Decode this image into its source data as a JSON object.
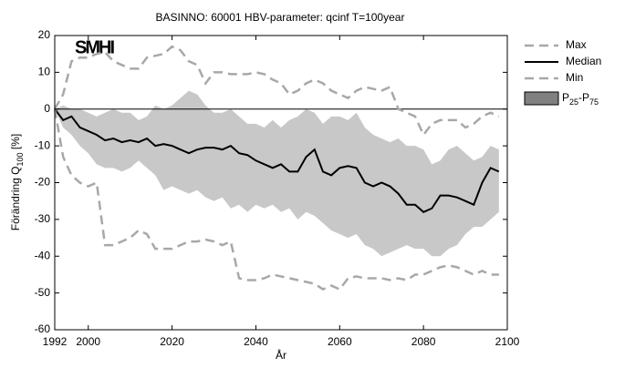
{
  "chart_data": {
    "type": "line",
    "title": "BASINNO: 60001    HBV-parameter: qcinf  T=100year",
    "logo": "SMHI",
    "x_label": "År",
    "y_label": "Förändring Q100 [%]",
    "xlim": [
      1992,
      2100
    ],
    "xticks": [
      1992,
      2000,
      2020,
      2040,
      2060,
      2080,
      2100
    ],
    "ylim": [
      -60,
      20
    ],
    "yticks": [
      -60,
      -50,
      -40,
      -30,
      -20,
      -10,
      0,
      10,
      20
    ],
    "x": [
      1992,
      1994,
      1996,
      1998,
      2000,
      2002,
      2004,
      2006,
      2008,
      2010,
      2012,
      2014,
      2016,
      2018,
      2020,
      2022,
      2024,
      2026,
      2028,
      2030,
      2032,
      2034,
      2036,
      2038,
      2040,
      2042,
      2044,
      2046,
      2048,
      2050,
      2052,
      2054,
      2056,
      2058,
      2060,
      2062,
      2064,
      2066,
      2068,
      2070,
      2072,
      2074,
      2076,
      2078,
      2080,
      2082,
      2084,
      2086,
      2088,
      2090,
      2092,
      2094,
      2096,
      2098
    ],
    "band": {
      "name": "P25-P75",
      "color": "#c8c8c8",
      "upper": [
        0,
        1,
        0,
        0,
        -1,
        -2,
        -1,
        0,
        -1,
        -1,
        -3,
        -2,
        1,
        0,
        1,
        3,
        5,
        4,
        1,
        -1,
        -1,
        0,
        -2,
        -4,
        -4,
        -5,
        -3,
        -5,
        -3,
        -2,
        0,
        -1,
        -4,
        -2,
        -2,
        -3,
        -1,
        -5,
        -7,
        -8,
        -9,
        -8,
        -10,
        -10,
        -11,
        -15,
        -14,
        -11,
        -10,
        -12,
        -14,
        -13,
        -10,
        -11
      ],
      "lower": [
        0,
        -5,
        -7,
        -10,
        -12,
        -15,
        -16,
        -16,
        -17,
        -16,
        -14,
        -16,
        -18,
        -22,
        -21,
        -22,
        -23,
        -22,
        -24,
        -25,
        -24,
        -27,
        -26,
        -28,
        -26,
        -27,
        -26,
        -28,
        -27,
        -30,
        -28,
        -29,
        -31,
        -33,
        -34,
        -35,
        -34,
        -37,
        -38,
        -40,
        -39,
        -38,
        -37,
        -38,
        -38,
        -40,
        -40,
        -38,
        -37,
        -34,
        -32,
        -32,
        -30,
        -28
      ]
    },
    "series": [
      {
        "name": "Max",
        "color": "#a8a8a8",
        "dashed": true,
        "values": [
          0,
          4,
          13,
          14,
          14,
          15,
          15.5,
          13,
          12,
          11,
          11,
          14,
          14.5,
          15,
          17,
          16,
          13,
          12,
          7,
          10,
          10,
          9.5,
          9.5,
          9.5,
          10,
          9.5,
          8,
          7,
          4,
          5,
          7,
          8,
          7,
          5,
          4,
          3,
          5,
          6,
          5.5,
          5,
          6,
          0,
          -1,
          -2,
          -7,
          -4,
          -3,
          -3,
          -3,
          -5,
          -4,
          -2,
          -1,
          -2
        ]
      },
      {
        "name": "Median",
        "color": "#000000",
        "dashed": false,
        "values": [
          0,
          -3,
          -2,
          -5,
          -6,
          -7,
          -8.5,
          -8,
          -9,
          -8.5,
          -9,
          -8,
          -10,
          -9.5,
          -10,
          -11,
          -12,
          -11,
          -10.5,
          -10.5,
          -11,
          -10,
          -12,
          -12.5,
          -14,
          -15,
          -16,
          -15,
          -17,
          -17,
          -13,
          -11,
          -17,
          -18,
          -16,
          -15.5,
          -16,
          -20,
          -21,
          -20,
          -21,
          -23,
          -26,
          -26,
          -28,
          -27,
          -23.5,
          -23.5,
          -24,
          -25,
          -26,
          -20,
          -16,
          -17
        ]
      },
      {
        "name": "Min",
        "color": "#a8a8a8",
        "dashed": true,
        "values": [
          0,
          -13,
          -18,
          -20,
          -21,
          -20,
          -37,
          -37,
          -36,
          -35,
          -33,
          -34,
          -38,
          -38,
          -38,
          -37,
          -36,
          -36,
          -35.5,
          -36,
          -37,
          -36,
          -46,
          -46.5,
          -46.5,
          -46,
          -45,
          -45.5,
          -46,
          -46.5,
          -47,
          -47.5,
          -49,
          -48,
          -49,
          -46,
          -45.5,
          -46,
          -46,
          -46,
          -46.5,
          -46,
          -46.5,
          -45,
          -45,
          -44,
          -43,
          -42.5,
          -43,
          -44,
          -45,
          -44,
          -45,
          -45
        ]
      }
    ]
  }
}
